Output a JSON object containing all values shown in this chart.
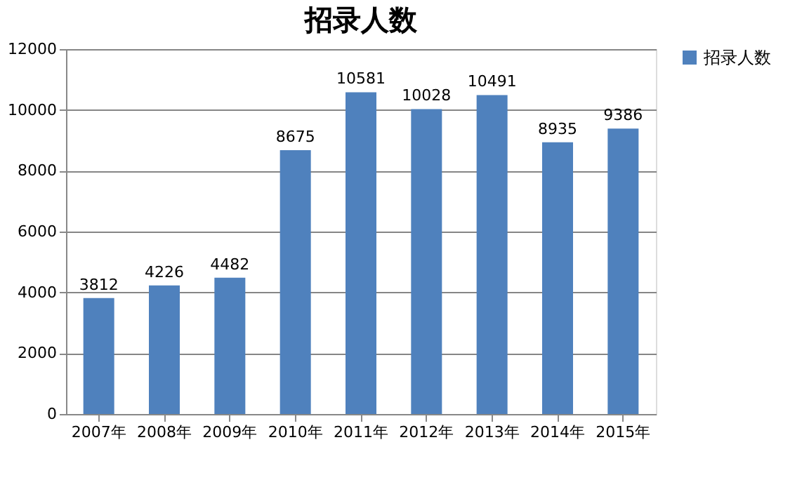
{
  "chart_data": {
    "type": "bar",
    "title": "招录人数",
    "categories": [
      "2007年",
      "2008年",
      "2009年",
      "2010年",
      "2011年",
      "2012年",
      "2013年",
      "2014年",
      "2015年"
    ],
    "series": [
      {
        "name": "招录人数",
        "color": "#4f81bd",
        "values": [
          3812,
          4226,
          4482,
          8675,
          10581,
          10028,
          10491,
          8935,
          9386
        ]
      }
    ],
    "ylim": [
      0,
      12000
    ],
    "yticks": [
      0,
      2000,
      4000,
      6000,
      8000,
      10000,
      12000
    ],
    "grid": "y",
    "legend": "right",
    "data_labels": true
  }
}
